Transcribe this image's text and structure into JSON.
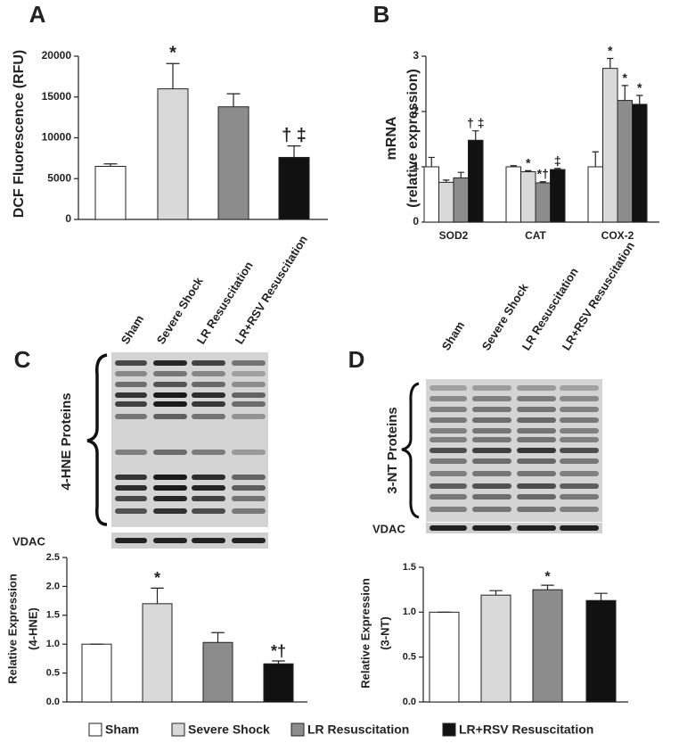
{
  "chart_data": [
    {
      "type": "bar",
      "panel": "A",
      "ylabel": [
        "DCF Fluorescence (RFU)"
      ],
      "values": [
        6500,
        16000,
        13800,
        7600
      ],
      "errors": [
        300,
        3100,
        1600,
        1400
      ],
      "annotations": [
        null,
        "*",
        null,
        "† ‡"
      ],
      "colors": [
        "#ffffff",
        "#d9d9d9",
        "#8c8c8c",
        "#111111"
      ],
      "ylim": [
        0,
        20000
      ],
      "yticks": [
        0,
        5000,
        10000,
        15000,
        20000
      ]
    },
    {
      "type": "bar",
      "panel": "B",
      "ylabel": [
        "mRNA",
        "(relative expression)"
      ],
      "categories": [
        "SOD2",
        "CAT",
        "COX-2"
      ],
      "series": [
        {
          "color": "#ffffff",
          "values": [
            1,
            1,
            1
          ],
          "errors": [
            0.17,
            0.02,
            0.27
          ]
        },
        {
          "color": "#d9d9d9",
          "values": [
            0.72,
            0.91,
            2.78
          ],
          "errors": [
            0.04,
            0.02,
            0.18
          ],
          "annotations": [
            null,
            "*",
            "*"
          ]
        },
        {
          "color": "#8c8c8c",
          "values": [
            0.8,
            0.71,
            2.2
          ],
          "errors": [
            0.1,
            0.02,
            0.27
          ],
          "annotations": [
            null,
            "*†",
            "*"
          ]
        },
        {
          "color": "#111111",
          "values": [
            1.48,
            0.95,
            2.13
          ],
          "errors": [
            0.17,
            0.02,
            0.16
          ],
          "annotations": [
            "† ‡",
            "‡",
            "*"
          ]
        }
      ],
      "ylim": [
        0,
        3
      ],
      "yticks": [
        0,
        1,
        2,
        3
      ]
    },
    {
      "type": "bar",
      "ylabel": [
        "Relative Expression",
        "(4-HNE)"
      ],
      "values": [
        1,
        1.7,
        1.03,
        0.66
      ],
      "errors": [
        0,
        0.27,
        0.17,
        0.05
      ],
      "annotations": [
        null,
        "*",
        null,
        "*†"
      ],
      "colors": [
        "#ffffff",
        "#d9d9d9",
        "#8c8c8c",
        "#111111"
      ],
      "ylim": [
        0,
        2.5
      ],
      "yticks": [
        {
          "value": 0,
          "label": "0.0"
        },
        {
          "value": 0.5,
          "label": "0.5"
        },
        {
          "value": 1,
          "label": "1.0"
        },
        {
          "value": 1.5,
          "label": "1.5"
        },
        {
          "value": 2,
          "label": "2.0"
        },
        {
          "value": 2.5,
          "label": "2.5"
        }
      ]
    },
    {
      "type": "bar",
      "ylabel": [
        "Relative Expression",
        "(3-NT)"
      ],
      "values": [
        1,
        1.19,
        1.25,
        1.13
      ],
      "errors": [
        0,
        0.05,
        0.05,
        0.08
      ],
      "annotations": [
        null,
        null,
        "*",
        null
      ],
      "colors": [
        "#ffffff",
        "#d9d9d9",
        "#8c8c8c",
        "#111111"
      ],
      "ylim": [
        0,
        1.5
      ],
      "yticks": [
        {
          "value": 0,
          "label": "0.0"
        },
        {
          "value": 0.5,
          "label": "0.5"
        },
        {
          "value": 1,
          "label": "1.0"
        },
        {
          "value": 1.5,
          "label": "1.5"
        }
      ]
    }
  ],
  "blots": [
    {
      "panel": "C",
      "lanes": [
        "Sham",
        "Severe Shock",
        "LR Resuscitation",
        "LR+RSV Resuscitation"
      ],
      "protein_label": "4-HNE Proteins",
      "loading_label": "VDAC"
    },
    {
      "panel": "D",
      "lanes": [
        "Sham",
        "Severe Shock",
        "LR Resuscitation",
        "LR+RSV Resuscitation"
      ],
      "protein_label": "3-NT Proteins",
      "loading_label": "VDAC"
    }
  ],
  "legend": {
    "items": [
      {
        "name": "Sham",
        "color": "#ffffff"
      },
      {
        "name": "Severe Shock",
        "color": "#d9d9d9"
      },
      {
        "name": "LR Resuscitation",
        "color": "#8c8c8c"
      },
      {
        "name": "LR+RSV Resuscitation",
        "color": "#111111"
      }
    ]
  }
}
